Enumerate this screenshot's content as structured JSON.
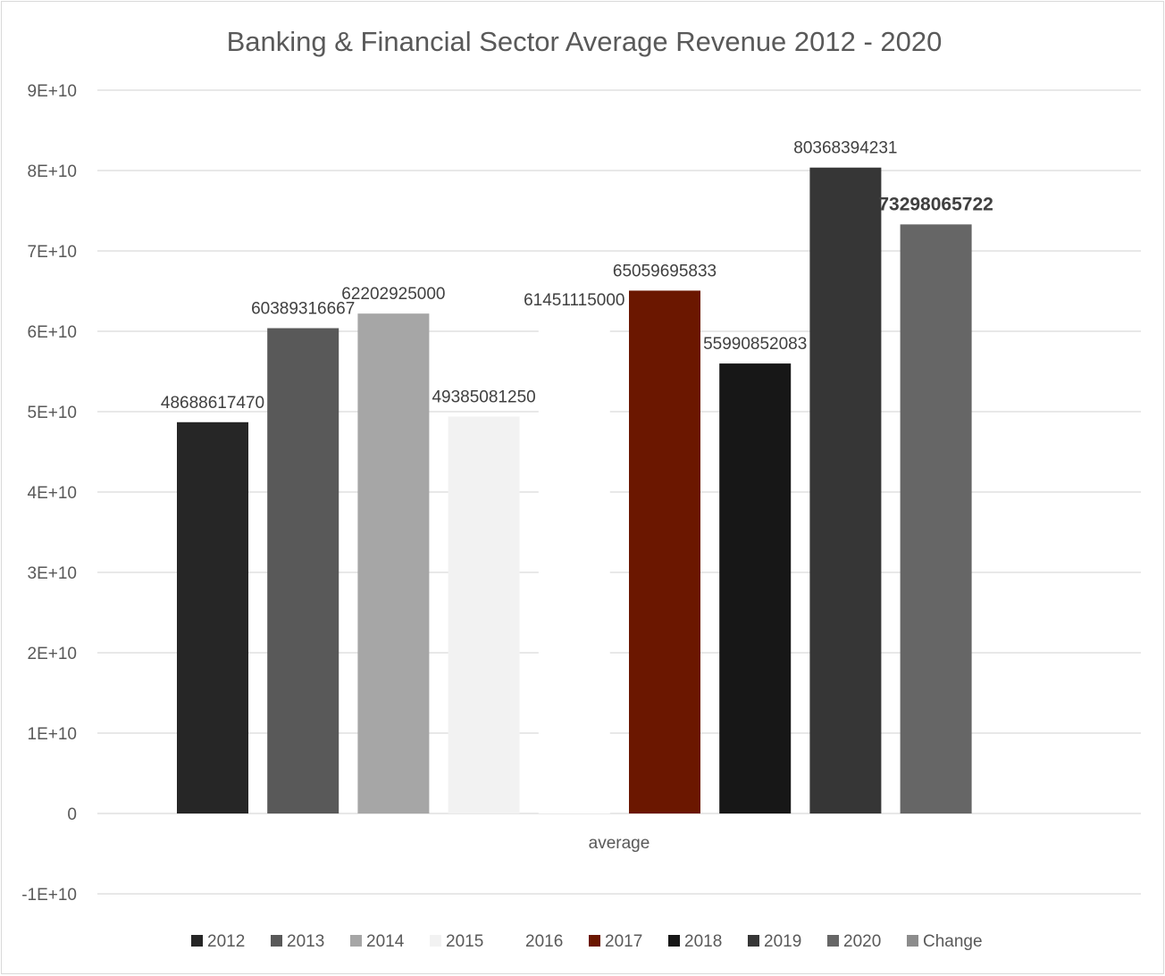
{
  "chart_data": {
    "type": "bar",
    "title": "Banking & Financial Sector Average Revenue 2012 - 2020",
    "categories": [
      "average"
    ],
    "ylim": [
      -10000000000,
      90000000000
    ],
    "yticks": [
      -10000000000,
      0,
      10000000000,
      20000000000,
      30000000000,
      40000000000,
      50000000000,
      60000000000,
      70000000000,
      80000000000,
      90000000000
    ],
    "ytick_labels": [
      "-1E+10",
      "0",
      "1E+10",
      "2E+10",
      "3E+10",
      "4E+10",
      "5E+10",
      "6E+10",
      "7E+10",
      "8E+10",
      "9E+10"
    ],
    "grid": true,
    "legend_position": "bottom",
    "series": [
      {
        "name": "2012",
        "values": [
          48688617470
        ],
        "label": "48688617470",
        "color": "#262626",
        "bold": false
      },
      {
        "name": "2013",
        "values": [
          60389316667
        ],
        "label": "60389316667",
        "color": "#595959",
        "bold": false
      },
      {
        "name": "2014",
        "values": [
          62202925000
        ],
        "label": "62202925000",
        "color": "#a6a6a6",
        "bold": false
      },
      {
        "name": "2015",
        "values": [
          49385081250
        ],
        "label": "49385081250",
        "color": "#f2f2f2",
        "bold": false
      },
      {
        "name": "2016",
        "values": [
          61451115000
        ],
        "label": "61451115000",
        "color": "#ffffff",
        "bold": false
      },
      {
        "name": "2017",
        "values": [
          65059695833
        ],
        "label": "65059695833",
        "color": "#6b1700",
        "bold": false
      },
      {
        "name": "2018",
        "values": [
          55990852083
        ],
        "label": "55990852083",
        "color": "#171717",
        "bold": false
      },
      {
        "name": "2019",
        "values": [
          80368394231
        ],
        "label": "80368394231",
        "color": "#363636",
        "bold": false
      },
      {
        "name": "2020",
        "values": [
          73298065722
        ],
        "label": "73298065722",
        "color": "#666666",
        "bold": true
      },
      {
        "name": "Change",
        "values": [
          null
        ],
        "label": "",
        "color": "#8c8c8c",
        "bold": false
      }
    ]
  }
}
